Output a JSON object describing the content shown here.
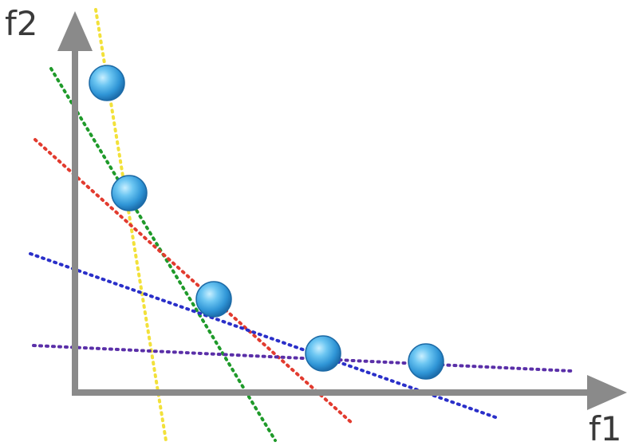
{
  "axes": {
    "y_label": "f2",
    "x_label": "f1",
    "axis_color": "#8a8a8a"
  },
  "points_color": "#3aa0df",
  "lines": [
    {
      "name": "yellow-dotted-line",
      "color": "#f2e13a"
    },
    {
      "name": "green-dotted-line",
      "color": "#1f9a2a"
    },
    {
      "name": "red-dotted-line",
      "color": "#e23b2f"
    },
    {
      "name": "blue-dotted-line",
      "color": "#2a2fc9"
    },
    {
      "name": "purple-dotted-line",
      "color": "#5a2fa8"
    }
  ],
  "points_count": 5
}
